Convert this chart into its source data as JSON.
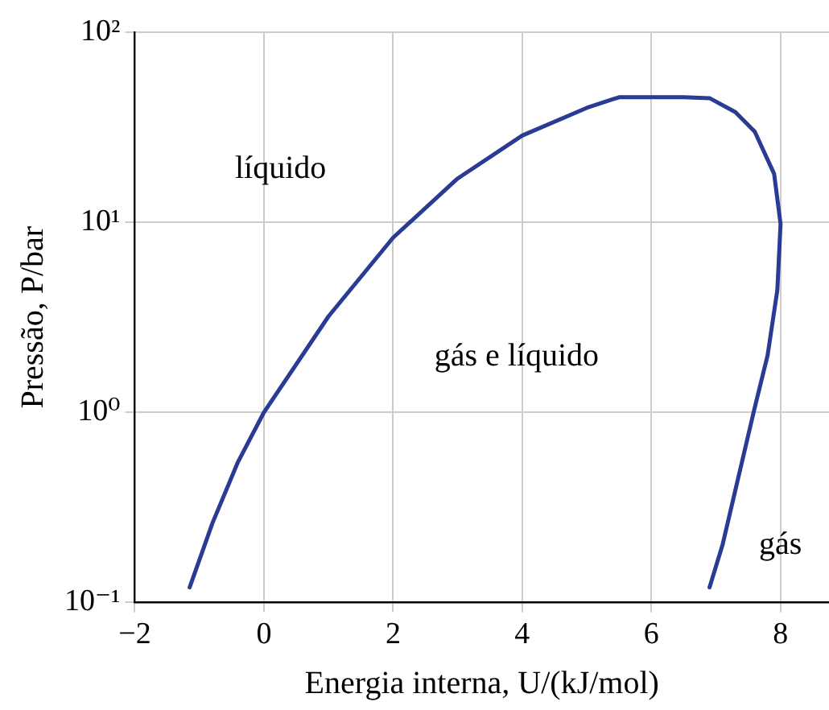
{
  "chart_data": {
    "type": "line",
    "xlabel": "Energia interna, U/(kJ/mol)",
    "ylabel": "Pressão, P/bar",
    "series": [
      {
        "color": "#2a3b93",
        "x": [
          -1.15,
          -0.8,
          -0.4,
          0,
          1,
          2,
          3,
          4,
          5,
          5.5,
          6,
          6.5,
          6.9,
          7.3,
          7.6,
          7.9,
          8.0,
          7.95,
          7.8,
          7.6,
          7.3,
          7.1,
          6.9
        ],
        "values": [
          0.12,
          0.26,
          0.55,
          1,
          3.2,
          8.3,
          17,
          28.6,
          40,
          45.5,
          45.5,
          45.5,
          45,
          38,
          30,
          18,
          9.8,
          4.4,
          2,
          1.06,
          0.39,
          0.2,
          0.12
        ]
      }
    ],
    "xlim": [
      -2,
      8.75
    ],
    "xticks": [
      -2,
      0,
      2,
      4,
      6,
      8
    ],
    "ylim": [
      0.1,
      100
    ],
    "yticks": [
      {
        "value": 0.1,
        "label": "10⁻¹"
      },
      {
        "value": 1,
        "label": "10⁰"
      },
      {
        "value": 10,
        "label": "10¹"
      },
      {
        "value": 100,
        "label": "10²"
      }
    ],
    "log": "y",
    "grid": true,
    "legend": false,
    "marker": "none",
    "line_style": "solid",
    "annotations": [
      "líquido",
      "gás e líquido",
      "gás"
    ]
  }
}
